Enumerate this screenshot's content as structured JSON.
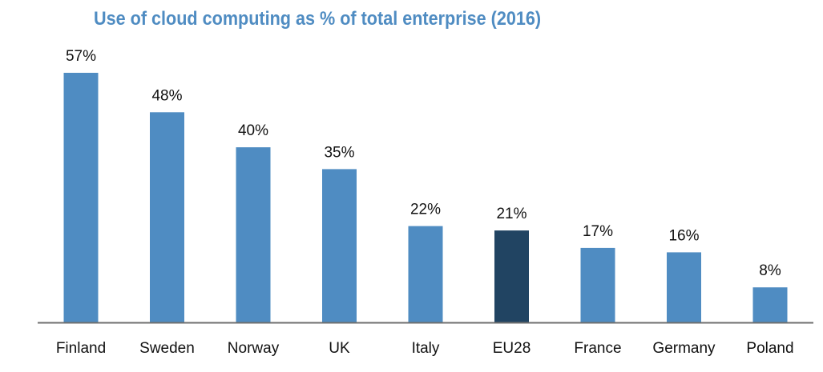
{
  "chart_data": {
    "type": "bar",
    "title": "Use of cloud computing as % of total enterprise (2016)",
    "xlabel": "",
    "ylabel": "",
    "categories": [
      "Finland",
      "Sweden",
      "Norway",
      "UK",
      "Italy",
      "EU28",
      "France",
      "Germany",
      "Poland"
    ],
    "values": [
      57,
      48,
      40,
      35,
      22,
      21,
      17,
      16,
      8
    ],
    "value_labels": [
      "57%",
      "48%",
      "40%",
      "35%",
      "22%",
      "21%",
      "17%",
      "16%",
      "8%"
    ],
    "unit": "%",
    "ylim": [
      0,
      57
    ],
    "grid": false,
    "legend": "none",
    "highlight_category": "EU28",
    "colors": {
      "bar": "#4f8cc2",
      "highlight": "#214462",
      "title": "#4f8cc2",
      "axis": "#6f6f6f",
      "text": "#111111"
    }
  }
}
